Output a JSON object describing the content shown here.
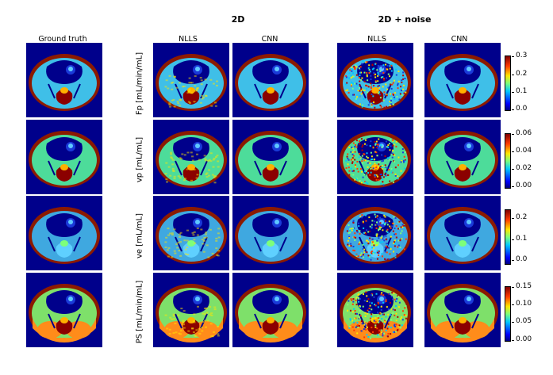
{
  "groups": {
    "g2d": "2D",
    "g2dnoise": "2D + noise"
  },
  "columns": {
    "gt": "Ground truth",
    "nlls_2d": "NLLS",
    "cnn_2d": "CNN",
    "nlls_noise": "NLLS",
    "cnn_noise": "CNN"
  },
  "rows": {
    "fp": "Fp [mL/min/mL]",
    "vp": "vp [mL/mL]",
    "ve": "ve [mL/mL]",
    "ps": "PS [mL/min/mL]"
  },
  "colorbars": {
    "fp": [
      "0.3",
      "0.2",
      "0.1",
      "0.0"
    ],
    "vp": [
      "0.06",
      "0.04",
      "0.02",
      "0.00"
    ],
    "ve": [
      "0.2",
      "0.1",
      "0.0"
    ],
    "ps": [
      "0.15",
      "0.10",
      "0.05",
      "0.00"
    ]
  },
  "colors": {
    "background": "#00008b",
    "ring": "#8b1a00",
    "tissue_fp": "#3fbfe8",
    "tissue_vp": "#4ddc9a",
    "tissue_ve": "#3fa8e0",
    "tissue_ps": "#7ee06a",
    "muscle_ps": "#ff8c1a",
    "core": "#8b0000",
    "lumen": "#1a3ad8"
  }
}
